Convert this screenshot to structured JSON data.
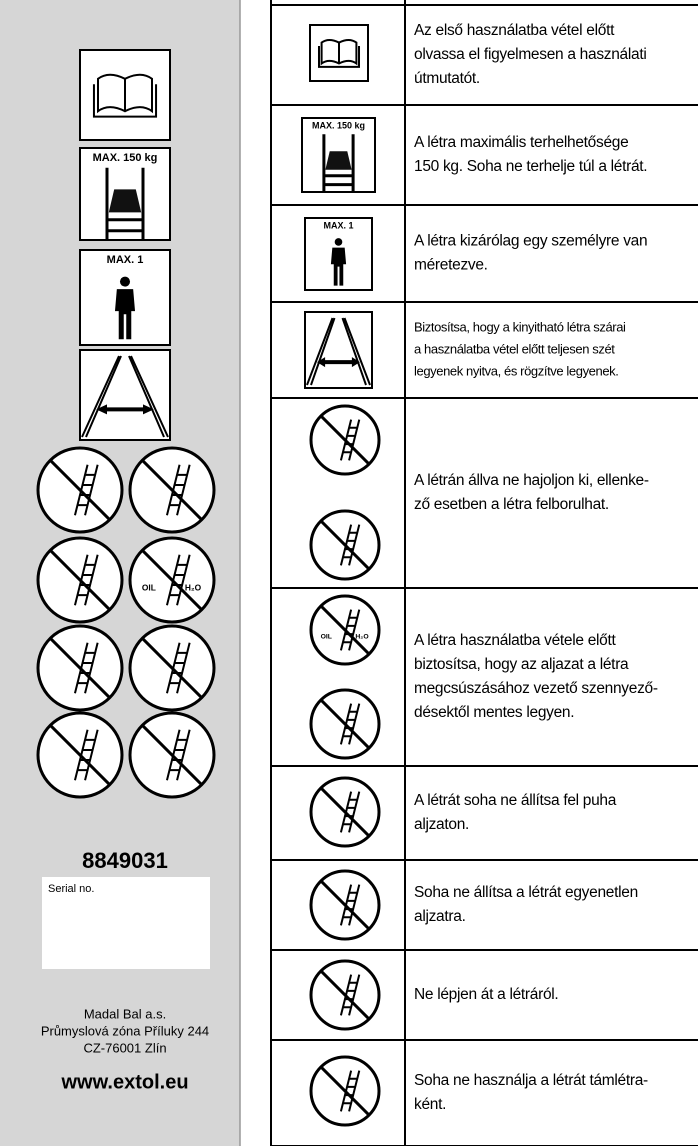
{
  "sidebar": {
    "max_load": "MAX. 150 kg",
    "max_persons": "MAX. 1",
    "oil": "OIL",
    "water": "H₂O",
    "product_code": "8849031",
    "serial_label": "Serial no.",
    "address": [
      "Madal Bal a.s.",
      "Průmyslová zóna Příluky 244",
      "CZ-76001 Zlín"
    ],
    "website": "www.extol.eu"
  },
  "table": {
    "rows": [
      {
        "icon_labels": [],
        "lines": [
          "Az első használatba vétel előtt",
          "olvassa el figyelmesen a használati",
          "útmutatót."
        ]
      },
      {
        "icon_labels": [
          "MAX. 150 kg"
        ],
        "lines": [
          "A létra maximális terhelhetősége",
          "150 kg. Soha ne terhelje túl a létrát."
        ]
      },
      {
        "icon_labels": [
          "MAX. 1"
        ],
        "lines": [
          "A létra kizárólag egy személyre van",
          "méretezve."
        ]
      },
      {
        "icon_labels": [],
        "lines": [
          "Biztosítsa, hogy a kinyitható létra szárai",
          "a használatba vétel előtt teljesen szét",
          "legyenek nyitva, és rögzítve legyenek."
        ]
      },
      {
        "icon_labels": [],
        "lines": [
          "A létrán állva ne hajoljon ki, ellenke-",
          "ző esetben a létra felborulhat."
        ]
      },
      {
        "icon_labels": [
          "OIL",
          "H₂O"
        ],
        "lines": [
          "A létra használatba vétele előtt",
          "biztosítsa, hogy az aljazat a létra",
          "megcsúszásához vezető szennyező-",
          "désektől mentes legyen."
        ]
      },
      {
        "icon_labels": [],
        "lines": [
          "A létrát soha ne állítsa fel puha",
          "aljzaton."
        ]
      },
      {
        "icon_labels": [],
        "lines": [
          "Soha ne állítsa a létrát egyenetlen",
          "aljzatra."
        ]
      },
      {
        "icon_labels": [],
        "lines": [
          "Ne lépjen át a létráról."
        ]
      },
      {
        "icon_labels": [],
        "lines": [
          "Soha ne használja a létrát támlétra-",
          "ként."
        ]
      }
    ]
  }
}
